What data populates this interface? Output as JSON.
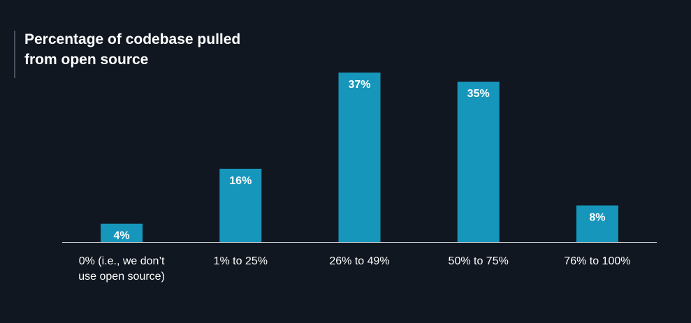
{
  "chart_data": {
    "type": "bar",
    "title_lines": [
      "Percentage of codebase pulled",
      "from open source"
    ],
    "categories": [
      [
        "0% (i.e., we don’t",
        "use open source)"
      ],
      [
        "1% to 25%"
      ],
      [
        "26% to 49%"
      ],
      [
        "50% to 75%"
      ],
      [
        "76% to 100%"
      ]
    ],
    "values": [
      4,
      16,
      37,
      35,
      8
    ],
    "data_labels": [
      "4%",
      "16%",
      "37%",
      "35%",
      "8%"
    ],
    "value_unit": "%",
    "xlabel": "",
    "ylabel": "",
    "ylim": [
      0,
      37
    ],
    "grid": false,
    "legend": "none",
    "colors": {
      "background": "#101720",
      "bar": "#1796bb",
      "baseline": "#c9ccd1",
      "text": "#ffffff",
      "title_rule": "#4a5260"
    }
  }
}
